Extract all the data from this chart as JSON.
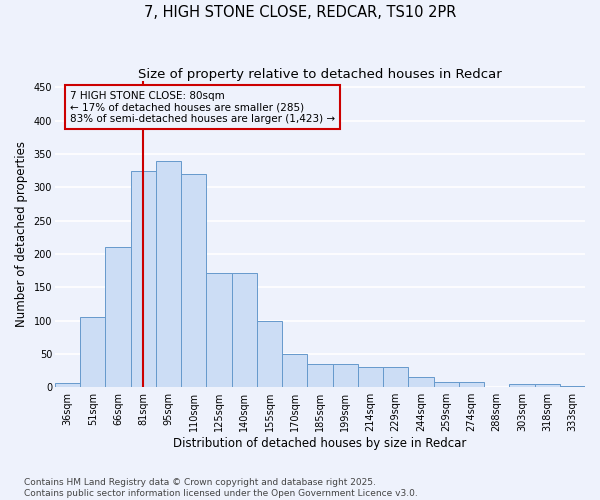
{
  "title_line1": "7, HIGH STONE CLOSE, REDCAR, TS10 2PR",
  "title_line2": "Size of property relative to detached houses in Redcar",
  "xlabel": "Distribution of detached houses by size in Redcar",
  "ylabel": "Number of detached properties",
  "categories": [
    "36sqm",
    "51sqm",
    "66sqm",
    "81sqm",
    "95sqm",
    "110sqm",
    "125sqm",
    "140sqm",
    "155sqm",
    "170sqm",
    "185sqm",
    "199sqm",
    "214sqm",
    "229sqm",
    "244sqm",
    "259sqm",
    "274sqm",
    "288sqm",
    "303sqm",
    "318sqm",
    "333sqm"
  ],
  "values": [
    7,
    106,
    210,
    325,
    340,
    320,
    172,
    172,
    100,
    50,
    35,
    35,
    30,
    30,
    16,
    8,
    8,
    0,
    5,
    5,
    2
  ],
  "bar_color": "#ccddf5",
  "bar_edge_color": "#6699cc",
  "vline_index": 3,
  "vline_color": "#cc0000",
  "annotation_line1": "7 HIGH STONE CLOSE: 80sqm",
  "annotation_line2": "← 17% of detached houses are smaller (285)",
  "annotation_line3": "83% of semi-detached houses are larger (1,423) →",
  "annotation_box_color": "#cc0000",
  "ylim": [
    0,
    460
  ],
  "yticks": [
    0,
    50,
    100,
    150,
    200,
    250,
    300,
    350,
    400,
    450
  ],
  "background_color": "#eef2fc",
  "grid_color": "#ffffff",
  "footer_line1": "Contains HM Land Registry data © Crown copyright and database right 2025.",
  "footer_line2": "Contains public sector information licensed under the Open Government Licence v3.0.",
  "title_fontsize": 10.5,
  "subtitle_fontsize": 9.5,
  "axis_label_fontsize": 8.5,
  "tick_fontsize": 7,
  "annotation_fontsize": 7.5,
  "footer_fontsize": 6.5
}
